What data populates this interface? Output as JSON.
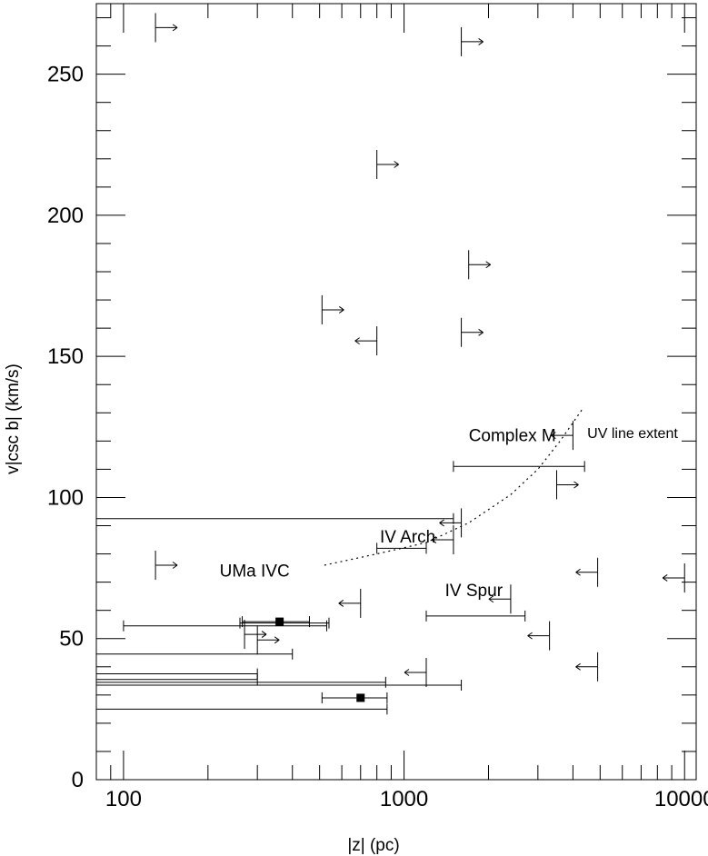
{
  "chart_data": {
    "type": "scatter",
    "x_scale": "log",
    "xlim": [
      80,
      11000
    ],
    "ylim": [
      0,
      275
    ],
    "xlabel": "|z| (pc)",
    "ylabel": "v|csc b| (km/s)",
    "x_ticks": [
      {
        "value": 100,
        "label": "100"
      },
      {
        "value": 1000,
        "label": "1000"
      },
      {
        "value": 10000,
        "label": "10000"
      }
    ],
    "y_ticks": [
      {
        "value": 0,
        "label": "0"
      },
      {
        "value": 50,
        "label": "50"
      },
      {
        "value": 100,
        "label": "100"
      },
      {
        "value": 150,
        "label": "150"
      },
      {
        "value": 200,
        "label": "200"
      },
      {
        "value": 250,
        "label": "250"
      }
    ],
    "detections": [
      {
        "x": 360,
        "y": 56,
        "x_min": 265,
        "x_max": 460
      },
      {
        "x": 700,
        "y": 29,
        "x_min": 510,
        "x_max": 870
      }
    ],
    "range_bars": [
      {
        "x_min": 100,
        "x_max": 530,
        "y": 54.5
      },
      {
        "x_min": 260,
        "x_max": 540,
        "y": 55.5
      },
      {
        "x_min": 1200,
        "x_max": 2700,
        "y": 58
      },
      {
        "x_min": 1500,
        "x_max": 4400,
        "y": 111
      },
      {
        "x_min": 800,
        "x_max": 1200,
        "y": 82
      },
      {
        "x_min": 80,
        "x_max": 1500,
        "y": 92.5
      },
      {
        "x_min": 80,
        "x_max": 400,
        "y": 44.5
      },
      {
        "x_min": 80,
        "x_max": 300,
        "y": 37.5
      },
      {
        "x_min": 80,
        "x_max": 300,
        "y": 35.5
      },
      {
        "x_min": 80,
        "x_max": 860,
        "y": 34.5
      },
      {
        "x_min": 80,
        "x_max": 1600,
        "y": 33.5
      },
      {
        "x_min": 80,
        "x_max": 870,
        "y": 25
      }
    ],
    "lower_limits": [
      {
        "x": 130,
        "y": 266.5
      },
      {
        "x": 1600,
        "y": 261.5
      },
      {
        "x": 800,
        "y": 218
      },
      {
        "x": 1700,
        "y": 182.5
      },
      {
        "x": 510,
        "y": 166.5
      },
      {
        "x": 1600,
        "y": 158.5
      },
      {
        "x": 3500,
        "y": 104.5
      },
      {
        "x": 130,
        "y": 76
      },
      {
        "x": 270,
        "y": 51.5
      },
      {
        "x": 300,
        "y": 49.5
      }
    ],
    "upper_limits": [
      {
        "x": 800,
        "y": 155.5
      },
      {
        "x": 4000,
        "y": 122
      },
      {
        "x": 1600,
        "y": 91
      },
      {
        "x": 1500,
        "y": 85
      },
      {
        "x": 4900,
        "y": 73.5
      },
      {
        "x": 10000,
        "y": 71.5
      },
      {
        "x": 700,
        "y": 62.5
      },
      {
        "x": 2400,
        "y": 64
      },
      {
        "x": 3300,
        "y": 51
      },
      {
        "x": 1200,
        "y": 38
      },
      {
        "x": 4900,
        "y": 40
      }
    ],
    "uv_curve": [
      [
        520,
        76
      ],
      [
        800,
        80
      ],
      [
        1200,
        84
      ],
      [
        1700,
        91
      ],
      [
        2400,
        101
      ],
      [
        3000,
        110
      ],
      [
        3600,
        120
      ],
      [
        4300,
        131
      ]
    ],
    "annotations": [
      {
        "text": "Complex M",
        "x": 1700,
        "y": 120,
        "size": "large"
      },
      {
        "text": "UV line extent",
        "x": 4500,
        "y": 121,
        "size": "small"
      },
      {
        "text": "IV Arch",
        "x": 820,
        "y": 84,
        "size": "large"
      },
      {
        "text": "UMa IVC",
        "x": 220,
        "y": 72,
        "size": "large"
      },
      {
        "text": "IV Spur",
        "x": 1400,
        "y": 65,
        "size": "large"
      }
    ]
  }
}
